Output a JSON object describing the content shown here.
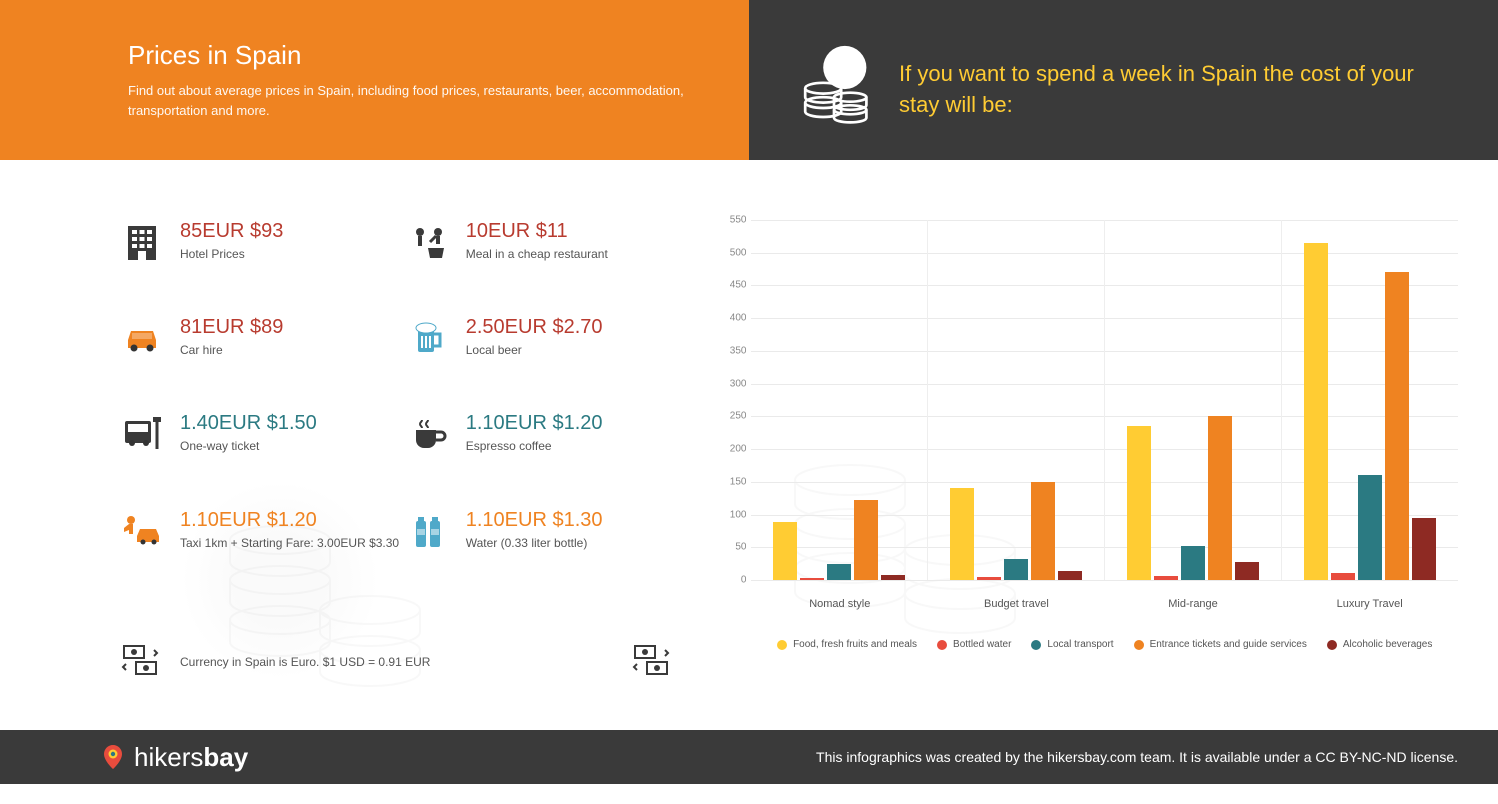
{
  "header": {
    "title": "Prices in Spain",
    "subtitle": "Find out about average prices in Spain, including food prices, restaurants, beer, accommodation, transportation and more.",
    "right_text": "If you want to spend a week in Spain the cost of your stay will be:",
    "left_bg": "#ef8321",
    "right_bg": "#3a3a3a",
    "right_text_color": "#ffcc33"
  },
  "prices": [
    {
      "amount": "85EUR $93",
      "label": "Hotel Prices",
      "color": "price-red",
      "icon": "building"
    },
    {
      "amount": "10EUR $11",
      "label": "Meal in a cheap restaurant",
      "color": "price-red",
      "icon": "meal"
    },
    {
      "amount": "81EUR $89",
      "label": "Car hire",
      "color": "price-red",
      "icon": "car"
    },
    {
      "amount": "2.50EUR $2.70",
      "label": "Local beer",
      "color": "price-red",
      "icon": "beer"
    },
    {
      "amount": "1.40EUR $1.50",
      "label": "One-way ticket",
      "color": "price-teal",
      "icon": "bus"
    },
    {
      "amount": "1.10EUR $1.20",
      "label": "Espresso coffee",
      "color": "price-teal",
      "icon": "coffee"
    },
    {
      "amount": "1.10EUR $1.20",
      "label": "Taxi 1km + Starting Fare: 3.00EUR $3.30",
      "color": "price-orange",
      "icon": "taxi"
    },
    {
      "amount": "1.10EUR $1.30",
      "label": "Water (0.33 liter bottle)",
      "color": "price-orange",
      "icon": "water"
    }
  ],
  "currency_note": "Currency in Spain is Euro. $1 USD = 0.91 EUR",
  "chart": {
    "ymax": 550,
    "ystep": 50,
    "yticks": [
      0,
      50,
      100,
      150,
      200,
      250,
      300,
      350,
      400,
      450,
      500,
      550
    ],
    "grid_color": "#eaeaea",
    "categories": [
      "Nomad style",
      "Budget travel",
      "Mid-range",
      "Luxury Travel"
    ],
    "series": [
      {
        "name": "Food, fresh fruits and meals",
        "color": "#ffcc33"
      },
      {
        "name": "Bottled water",
        "color": "#e84c3d"
      },
      {
        "name": "Local transport",
        "color": "#2b7a82"
      },
      {
        "name": "Entrance tickets and guide services",
        "color": "#ef8321"
      },
      {
        "name": "Alcoholic beverages",
        "color": "#8e2a23"
      }
    ],
    "data": [
      [
        88,
        3,
        25,
        122,
        8
      ],
      [
        140,
        5,
        32,
        150,
        14
      ],
      [
        235,
        6,
        52,
        250,
        28
      ],
      [
        515,
        10,
        160,
        470,
        95
      ]
    ]
  },
  "footer": {
    "brand_a": "hikers",
    "brand_b": "bay",
    "text": "This infographics was created by the hikersbay.com team. It is available under a CC BY-NC-ND license."
  },
  "icon_colors": {
    "building": "#3a3a3a",
    "car": "#ef8321",
    "bus": "#3a3a3a",
    "taxi": "#ef8321",
    "meal": "#3a3a3a",
    "beer": "#4fa9c9",
    "coffee": "#3a3a3a",
    "water": "#4fa9c9",
    "exchange": "#3a3a3a"
  }
}
